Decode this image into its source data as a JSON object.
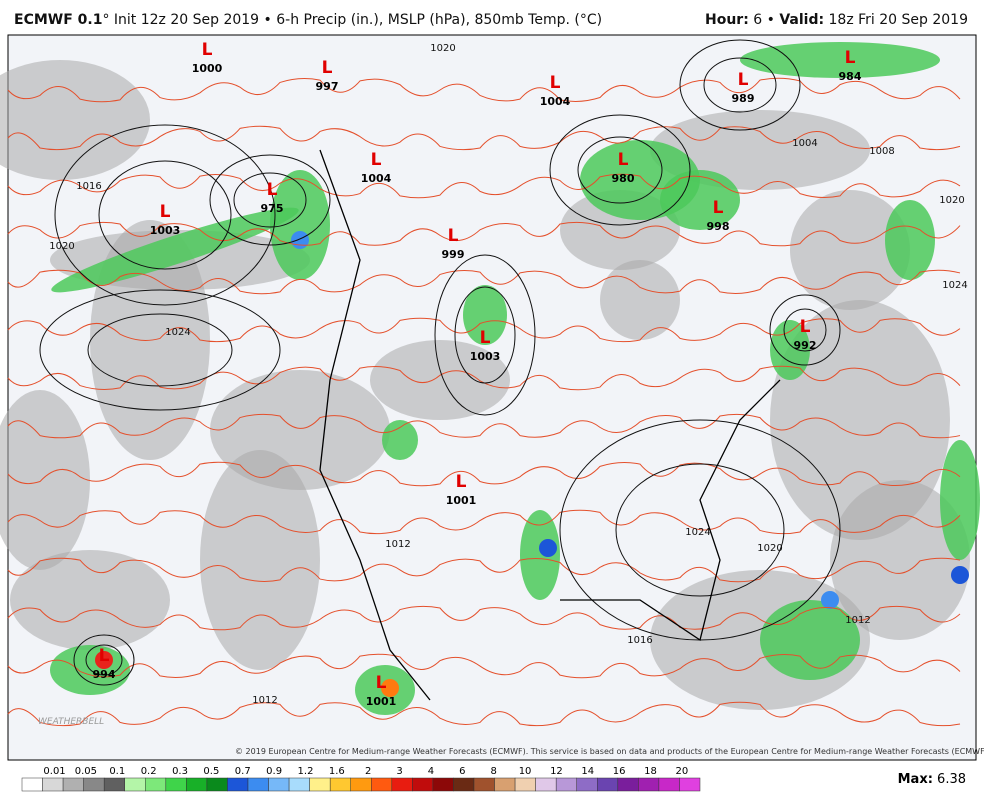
{
  "header": {
    "model": "ECMWF 0.1",
    "description": "° Init 12z 20 Sep 2019 • 6-h Precip (in.), MSLP (hPa), 850mb Temp. (°C)",
    "hour_label": "Hour:",
    "hour": "6 •",
    "valid_label": "Valid:",
    "valid": "18z Fri 20 Sep 2019"
  },
  "lows": [
    {
      "letter": "L",
      "pressure": 1000
    },
    {
      "letter": "L",
      "pressure": 997
    },
    {
      "letter": "L",
      "pressure": 1004
    },
    {
      "letter": "L",
      "pressure": 1004
    },
    {
      "letter": "L",
      "pressure": 975
    },
    {
      "letter": "L",
      "pressure": 1003
    },
    {
      "letter": "L",
      "pressure": 999
    },
    {
      "letter": "L",
      "pressure": 980
    },
    {
      "letter": "L",
      "pressure": 998
    },
    {
      "letter": "L",
      "pressure": 989
    },
    {
      "letter": "L",
      "pressure": 984
    },
    {
      "letter": "L",
      "pressure": 992
    },
    {
      "letter": "L",
      "pressure": 1003
    },
    {
      "letter": "L",
      "pressure": 1001
    },
    {
      "letter": "L",
      "pressure": 994
    },
    {
      "letter": "L",
      "pressure": 1001
    }
  ],
  "isobar_labels": [
    1020,
    1016,
    1020,
    1024,
    1004,
    1008,
    1020,
    1024,
    1024,
    1020,
    1016,
    1012,
    1012,
    1012
  ],
  "watermark": "WEATHERBELL",
  "copyright": "© 2019 European Centre for Medium-range Weather Forecasts (ECMWF). This service is based on data and products of the European Centre for Medium-range Weather Forecasts (ECMWF).",
  "colorbar": {
    "ticks": [
      0.01,
      0.05,
      0.1,
      0.2,
      0.3,
      0.5,
      0.7,
      0.9,
      1.2,
      1.6,
      2,
      3,
      4,
      6,
      8,
      10,
      12,
      14,
      16,
      18,
      20
    ],
    "colors": [
      "#ffffff",
      "#d8d8d8",
      "#b0b0b0",
      "#888888",
      "#606060",
      "#b4f5a8",
      "#7de87a",
      "#3fd44a",
      "#18b028",
      "#0a8a1c",
      "#1c56d8",
      "#3c8cf0",
      "#76b8f8",
      "#a8dcfc",
      "#fff08a",
      "#ffc830",
      "#ff9a10",
      "#ff5a10",
      "#e81c10",
      "#c00c0c",
      "#8c0808",
      "#6a2a14",
      "#a0522d",
      "#d8a070",
      "#f0d0b0",
      "#e0c8e8",
      "#b898d8",
      "#8e6cc6",
      "#6a44b0",
      "#7a1e9c",
      "#a020b0",
      "#c828c8",
      "#e040e0"
    ]
  },
  "max_label": "Max:",
  "max_value": 6.38
}
